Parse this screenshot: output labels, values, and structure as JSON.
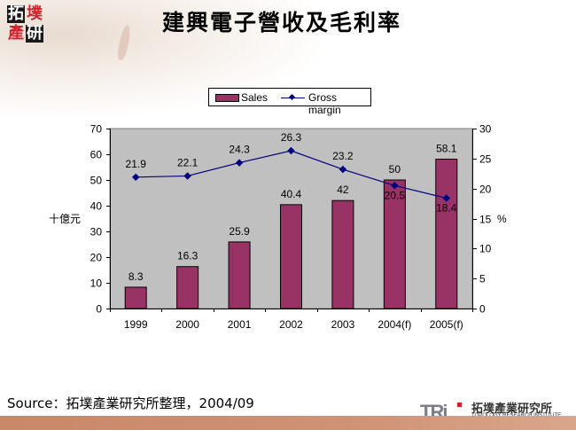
{
  "header": {
    "logo_chars": [
      "拓",
      "墣",
      "產",
      "研"
    ],
    "title": "建興電子營收及毛利率"
  },
  "legend": {
    "items": [
      {
        "label": "Sales",
        "type": "bar",
        "color": "#993366"
      },
      {
        "label": "Gross margin",
        "type": "line",
        "color": "#000080"
      }
    ]
  },
  "chart_data": {
    "type": "bar+line",
    "title": "建興電子營收及毛利率",
    "categories": [
      "1999",
      "2000",
      "2001",
      "2002",
      "2003",
      "2004(f)",
      "2005(f)"
    ],
    "series": [
      {
        "name": "Sales",
        "type": "bar",
        "axis": "left",
        "color": "#993366",
        "values": [
          8.3,
          16.3,
          25.9,
          40.4,
          42,
          50,
          58.1
        ]
      },
      {
        "name": "Gross margin",
        "type": "line",
        "axis": "right",
        "color": "#000080",
        "values": [
          21.9,
          22.1,
          24.3,
          26.3,
          23.2,
          20.5,
          18.4
        ]
      }
    ],
    "ylabel_left": "十億元",
    "ylabel_right": "%",
    "ylim_left": [
      0,
      70
    ],
    "yticks_left": [
      0,
      10,
      20,
      30,
      40,
      50,
      60,
      70
    ],
    "ylim_right": [
      0,
      30
    ],
    "yticks_right": [
      0,
      5,
      10,
      15,
      20,
      25,
      30
    ],
    "plot_background": "#c0c0c0",
    "grid": false,
    "legend_position": "top"
  },
  "footer": {
    "source": "Source：拓墣產業研究所整理，2004/09",
    "brand_mark": "TRi",
    "brand_cn": "拓墣產業研究所",
    "brand_en": "TOPOLOGY RESEARCH INSTITUTE"
  }
}
